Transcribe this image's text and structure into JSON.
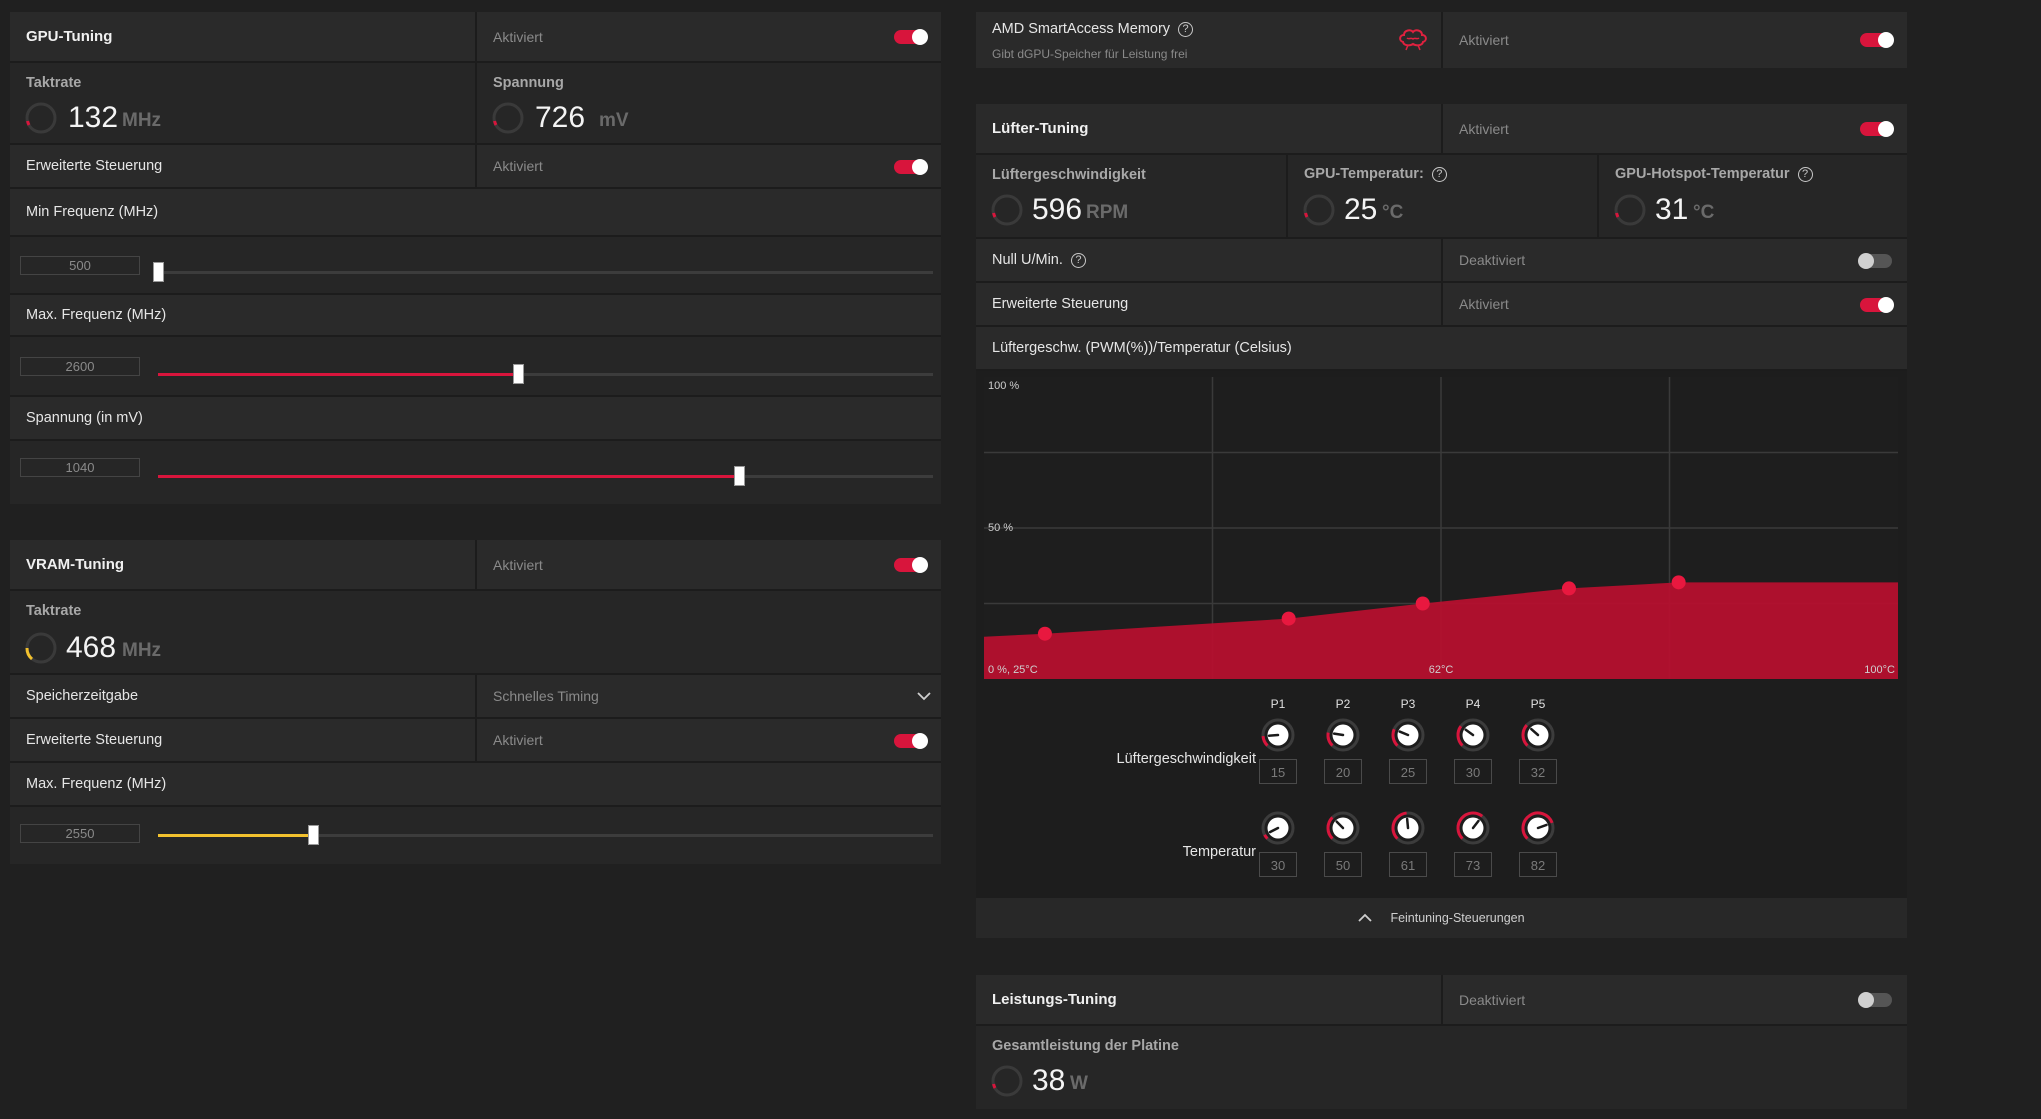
{
  "gpu_tuning": {
    "title": "GPU-Tuning",
    "status": "Aktiviert",
    "clock_label": "Taktrate",
    "clock_value": "132",
    "clock_unit": "MHz",
    "voltage_label": "Spannung",
    "voltage_value": "726",
    "voltage_unit": "mV",
    "advanced_label": "Erweiterte Steuerung",
    "advanced_status": "Aktiviert",
    "min_freq_label": "Min Frequenz (MHz)",
    "min_freq_value": "500",
    "min_freq_fraction": 0.0,
    "max_freq_label": "Max. Frequenz (MHz)",
    "max_freq_value": "2600",
    "max_freq_fraction": 0.465,
    "volt_slider_label": "Spannung (in mV)",
    "volt_slider_value": "1040",
    "volt_slider_fraction": 0.75
  },
  "vram_tuning": {
    "title": "VRAM-Tuning",
    "status": "Aktiviert",
    "clock_label": "Taktrate",
    "clock_value": "468",
    "clock_unit": "MHz",
    "timing_label": "Speicherzeitgabe",
    "timing_value": "Schnelles Timing",
    "advanced_label": "Erweiterte Steuerung",
    "advanced_status": "Aktiviert",
    "max_freq_label": "Max. Frequenz (MHz)",
    "max_freq_value": "2550",
    "max_freq_fraction": 0.2
  },
  "sam": {
    "title": "AMD SmartAccess Memory",
    "subtitle": "Gibt dGPU-Speicher für Leistung frei",
    "status": "Aktiviert"
  },
  "fan_tuning": {
    "title": "Lüfter-Tuning",
    "status": "Aktiviert",
    "fan_speed_label": "Lüftergeschwindigkeit",
    "fan_speed_value": "596",
    "fan_speed_unit": "RPM",
    "gpu_temp_label": "GPU-Temperatur:",
    "gpu_temp_value": "25",
    "gpu_temp_unit": "°C",
    "hotspot_label": "GPU-Hotspot-Temperatur",
    "hotspot_value": "31",
    "hotspot_unit": "°C",
    "zero_rpm_label": "Null U/Min.",
    "zero_rpm_status": "Deaktiviert",
    "advanced_label": "Erweiterte Steuerung",
    "advanced_status": "Aktiviert",
    "curve_label": "Lüftergeschw. (PWM(%))/Temperatur (Celsius)",
    "fine_tune_label": "Feintuning-Steuerungen",
    "speed_row_label": "Lüftergeschwindigkeit",
    "temp_row_label": "Temperatur",
    "points": [
      "P1",
      "P2",
      "P3",
      "P4",
      "P5"
    ],
    "speed_values": [
      "15",
      "20",
      "25",
      "30",
      "32"
    ],
    "temp_values": [
      "30",
      "50",
      "61",
      "73",
      "82"
    ]
  },
  "chart_data": {
    "type": "area",
    "x": [
      30,
      50,
      61,
      73,
      82
    ],
    "values": [
      15,
      20,
      25,
      30,
      32
    ],
    "xlim": [
      25,
      100
    ],
    "ylim": [
      0,
      100
    ],
    "y_tick_labels": [
      "100 %",
      "50 %"
    ],
    "x_tick_labels": [
      "0 %, 25°C",
      "62°C",
      "100°C"
    ],
    "grid": true,
    "color": "#b5102e"
  },
  "power_tuning": {
    "title": "Leistungs-Tuning",
    "status": "Deaktiviert",
    "power_label": "Gesamtleistung der Platine",
    "power_value": "38",
    "power_unit": "W"
  },
  "colors": {
    "accent": "#d8153c",
    "vram_accent": "#f2c12e"
  }
}
